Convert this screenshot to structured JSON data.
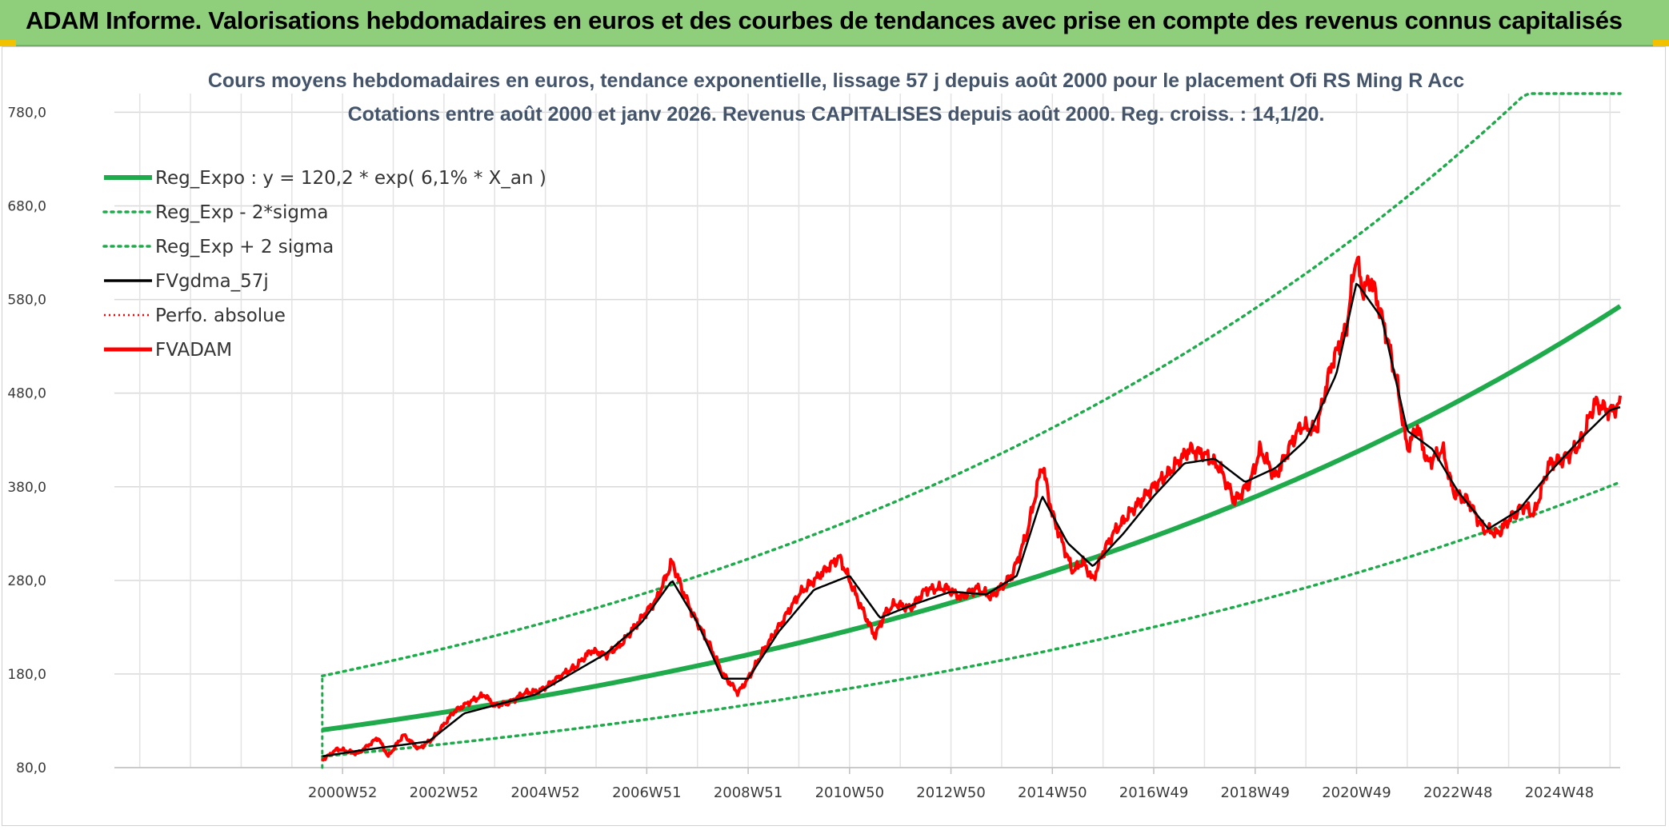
{
  "banner": {
    "title": "ADAM Informe. Valorisations hebdomadaires en euros et des courbes de tendances avec prise en compte des revenus connus capitalisés"
  },
  "colors": {
    "banner_bg": "#8fce7b",
    "trend": "#1faa4b",
    "price": "#ff0000",
    "smooth": "#000000",
    "grid": "#d9d9d9"
  },
  "chart_data": {
    "type": "line",
    "title": "Cours moyens hebdomadaires en euros, tendance exponentielle, lissage 57 j depuis août 2000 pour le placement Ofi RS Ming R Acc",
    "subtitle": "Cotations entre août 2000 et janv 2026. Revenus CAPITALISES depuis août 2000. Reg. croiss. : 14,1/20.",
    "xlabel": "",
    "ylabel": "",
    "ylim": [
      80,
      800
    ],
    "xlim": [
      1996.5,
      2026.2
    ],
    "y_ticks": [
      "80,0",
      "180,0",
      "280,0",
      "380,0",
      "480,0",
      "580,0",
      "680,0",
      "780,0"
    ],
    "y_tick_values": [
      80,
      180,
      280,
      380,
      480,
      580,
      680,
      780
    ],
    "x_ticks": [
      "2000W52",
      "2002W52",
      "2004W52",
      "2006W51",
      "2008W51",
      "2010W50",
      "2012W50",
      "2014W50",
      "2016W49",
      "2018W49",
      "2020W49",
      "2022W48",
      "2024W48"
    ],
    "x_tick_values": [
      2001,
      2003,
      2005,
      2007,
      2009,
      2011,
      2013,
      2015,
      2017,
      2019,
      2021,
      2023,
      2025
    ],
    "grid": true,
    "legend_position": "top-left",
    "trend": {
      "a": 120.2,
      "rate_pct": 6.1,
      "start": 2000.6,
      "end": 2026.2,
      "lower_start_value": 92,
      "lower_end_value": 385,
      "upper_start_value": 178,
      "upper_end_value": 800
    },
    "series": [
      {
        "name": "Reg_Expo : y = 120,2 * exp( 6,1% *  X_an )",
        "style": "solid-thick-green"
      },
      {
        "name": "Reg_Exp - 2*sigma",
        "style": "dotted-green"
      },
      {
        "name": "Reg_Exp + 2 sigma",
        "style": "dotted-green"
      },
      {
        "name": "FVgdma_57j",
        "style": "solid-black"
      },
      {
        "name": "Perfo. absolue",
        "style": "dotted-red"
      },
      {
        "name": "FVADAM",
        "style": "solid-red",
        "x": [
          2000.6,
          2000.9,
          2001.3,
          2001.7,
          2001.9,
          2002.2,
          2002.5,
          2002.8,
          2003.2,
          2003.5,
          2003.8,
          2004.0,
          2004.3,
          2004.6,
          2004.9,
          2005.3,
          2005.6,
          2005.9,
          2006.2,
          2006.5,
          2006.9,
          2007.2,
          2007.5,
          2007.7,
          2007.9,
          2008.2,
          2008.5,
          2008.8,
          2009.0,
          2009.3,
          2009.6,
          2010.0,
          2010.4,
          2010.8,
          2011.0,
          2011.2,
          2011.5,
          2011.7,
          2011.9,
          2012.2,
          2012.5,
          2012.9,
          2013.2,
          2013.5,
          2013.8,
          2014.2,
          2014.5,
          2014.8,
          2015.0,
          2015.2,
          2015.4,
          2015.6,
          2015.8,
          2016.0,
          2016.2,
          2016.5,
          2016.9,
          2017.3,
          2017.7,
          2018.0,
          2018.3,
          2018.6,
          2018.9,
          2019.1,
          2019.4,
          2019.7,
          2019.9,
          2020.2,
          2020.5,
          2020.8,
          2021.0,
          2021.1,
          2021.3,
          2021.6,
          2021.8,
          2022.0,
          2022.2,
          2022.4,
          2022.7,
          2022.9,
          2023.2,
          2023.5,
          2023.8,
          2024.0,
          2024.3,
          2024.5,
          2024.8,
          2025.1,
          2025.4,
          2025.7,
          2026.0,
          2026.2
        ],
        "values": [
          88,
          100,
          95,
          112,
          92,
          115,
          100,
          112,
          140,
          150,
          158,
          146,
          150,
          160,
          162,
          178,
          188,
          205,
          200,
          212,
          240,
          260,
          300,
          270,
          245,
          215,
          180,
          160,
          175,
          205,
          230,
          265,
          285,
          305,
          280,
          255,
          220,
          245,
          255,
          250,
          270,
          272,
          262,
          272,
          262,
          285,
          330,
          405,
          350,
          320,
          290,
          300,
          280,
          310,
          330,
          350,
          375,
          395,
          420,
          415,
          400,
          365,
          385,
          420,
          390,
          425,
          445,
          440,
          510,
          550,
          630,
          590,
          600,
          540,
          490,
          420,
          445,
          405,
          420,
          375,
          365,
          335,
          330,
          345,
          360,
          350,
          405,
          410,
          425,
          470,
          460,
          468
        ]
      },
      {
        "name": "FVgdma_57j_points",
        "x": [
          2000.6,
          2001.3,
          2002.0,
          2002.7,
          2003.4,
          2004.1,
          2004.8,
          2005.5,
          2006.2,
          2006.9,
          2007.5,
          2008.0,
          2008.5,
          2009.0,
          2009.6,
          2010.3,
          2011.0,
          2011.6,
          2012.3,
          2013.0,
          2013.7,
          2014.3,
          2014.8,
          2015.3,
          2015.8,
          2016.4,
          2017.0,
          2017.6,
          2018.2,
          2018.8,
          2019.4,
          2020.0,
          2020.6,
          2021.0,
          2021.5,
          2022.0,
          2022.5,
          2023.0,
          2023.6,
          2024.2,
          2024.8,
          2025.4,
          2026.0,
          2026.2
        ],
        "values": [
          92,
          98,
          103,
          108,
          138,
          148,
          158,
          180,
          202,
          235,
          280,
          235,
          175,
          175,
          225,
          270,
          285,
          240,
          255,
          268,
          265,
          285,
          370,
          320,
          295,
          330,
          370,
          405,
          410,
          385,
          400,
          430,
          500,
          598,
          560,
          440,
          420,
          375,
          335,
          355,
          395,
          430,
          462,
          465
        ]
      }
    ]
  }
}
